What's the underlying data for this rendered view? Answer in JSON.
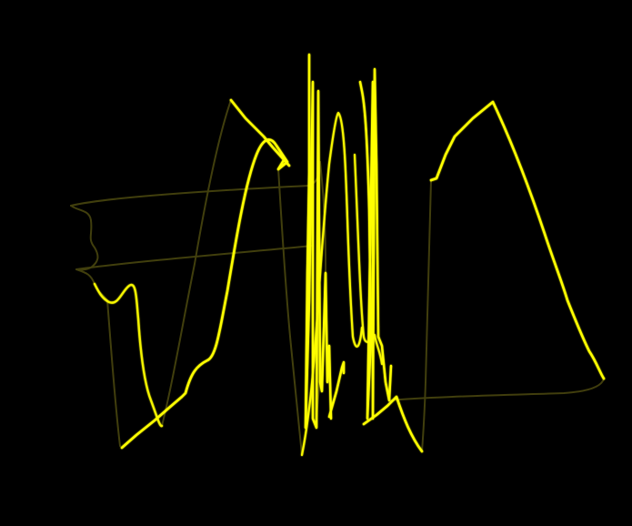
{
  "scene": {
    "background_color": "#000000",
    "stroke_color": "#ffff00",
    "description_visible_text": ""
  }
}
